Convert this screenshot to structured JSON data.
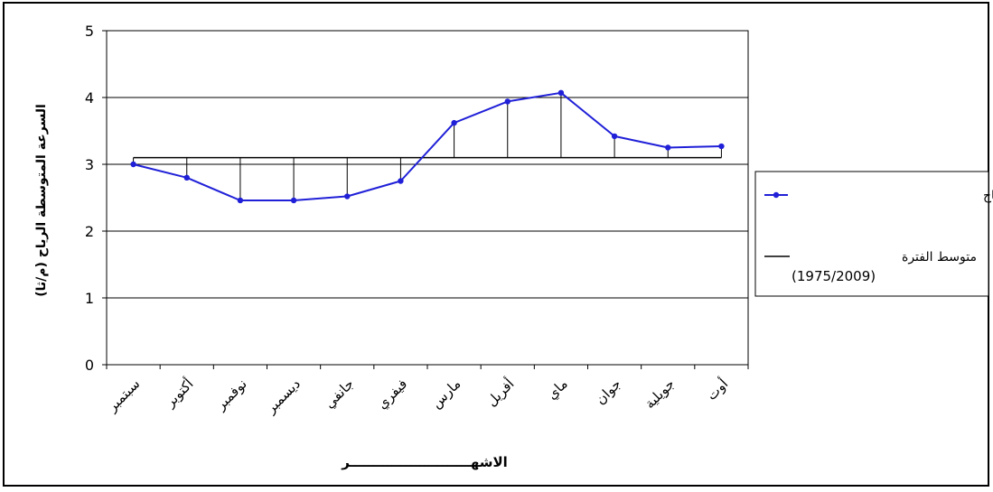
{
  "chart_data": {
    "type": "line",
    "title": "",
    "xlabel": "الاشهــــــــــــــــــــــــــر",
    "ylabel": "السرعة المتوسطة الرياح (م/ثا)",
    "categories": [
      "سبتمبر",
      "أكتوبر",
      "نوفمبر",
      "ديسمبر",
      "جانفي",
      "فيفري",
      "مارس",
      "أفريل",
      "ماي",
      "جوان",
      "جويلية",
      "أوت"
    ],
    "ylim": [
      0,
      5
    ],
    "yticks": [
      "0",
      "1",
      "2",
      "3",
      "4",
      "5"
    ],
    "grid": true,
    "legend_position": "right",
    "series": [
      {
        "name": "السرعة المتوسطة الرياح",
        "values": [
          3.0,
          2.8,
          2.46,
          2.46,
          2.52,
          2.75,
          3.62,
          3.94,
          4.07,
          3.42,
          3.25,
          3.27
        ],
        "color": "#2020d8"
      },
      {
        "name": "متوسط الفترة (1975/2009)",
        "values": [
          3.1,
          3.1,
          3.1,
          3.1,
          3.1,
          3.1,
          3.1,
          3.1,
          3.1,
          3.1,
          3.1,
          3.1
        ],
        "color": "#000000"
      }
    ],
    "legend": {
      "line1": "السرعة المتوسطة الرياح",
      "line2a": "متوسط الفترة",
      "line2b": "(1975/2009)"
    }
  }
}
